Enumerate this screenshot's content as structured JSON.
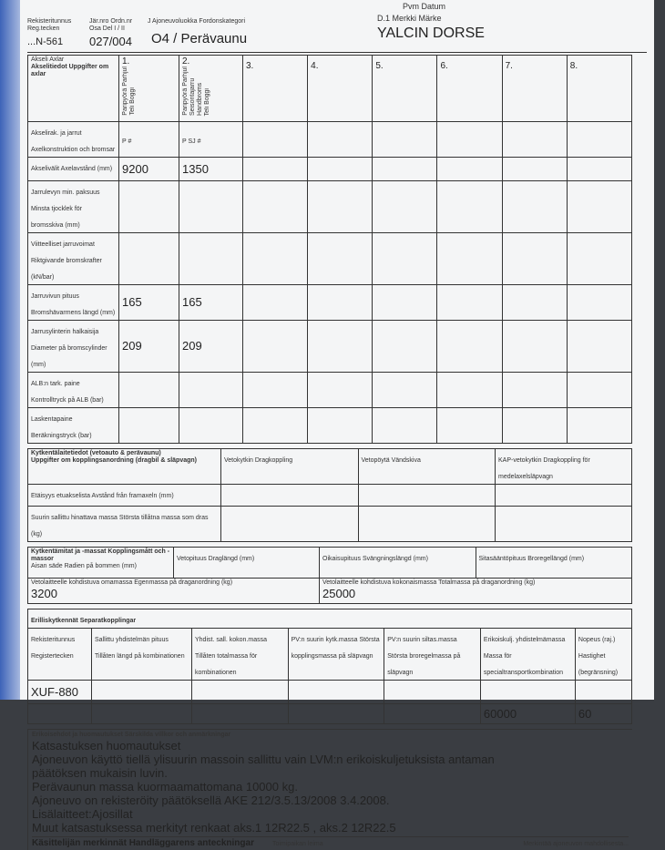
{
  "header": {
    "reg_label": "Rekisteritunnus Reg.tecken",
    "reg_value": "...N-561",
    "serial_label": "Jär.nro Ordn.nr Osa Del I / II",
    "serial_value": "027/004",
    "category_label": "J Ajoneuvoluokka Fordonskategori",
    "category_value": "O4 / Perävaunu",
    "make_label": "D.1 Merkki Märke",
    "make_value": "YALCIN DORSE",
    "date_label": "Pvm Datum"
  },
  "axles": {
    "axle_label": "Akseli Axlar",
    "info_label": "Akselitiedot Uppgifter om axlar",
    "columns": [
      "1.",
      "2.",
      "3.",
      "4.",
      "5.",
      "6.",
      "7.",
      "8."
    ],
    "sub1": [
      "Paripyörä Parhjul",
      "Teli Boggi"
    ],
    "sub2": [
      "Paripyörä Parhjul",
      "Seisontajarru Handbroms",
      "Teli Boggi"
    ],
    "rows": [
      {
        "label": "Akselirak. ja jarrut Axelkonstruktion och bromsar",
        "v1": "P   #",
        "v2": "P   SJ   #"
      },
      {
        "label": "Akselivälit Axelavstånd (mm)",
        "v1": "9200",
        "v2": "1350"
      },
      {
        "label": "Jarrulevyn min. paksuus Minsta tjocklek för bromsskiva (mm)",
        "v1": "",
        "v2": ""
      },
      {
        "label": "Viitteelliset jarruvoimat Riktgivande bromskrafter (kN/bar)",
        "v1": "",
        "v2": ""
      },
      {
        "label": "Jarruvivun pituus Bromshävarmens längd (mm)",
        "v1": "165",
        "v2": "165"
      },
      {
        "label": "Jarrusylinterin halkaisija Diameter på bromscylinder (mm)",
        "v1": "209",
        "v2": "209"
      },
      {
        "label": "ALB:n tark. paine Kontrolltryck på ALB (bar)",
        "v1": "",
        "v2": ""
      },
      {
        "label": "Laskentapaine Beräkningstryck (bar)",
        "v1": "",
        "v2": ""
      }
    ]
  },
  "coupling": {
    "title1": "Kytkentälaitetiedot (vetoauto & perävaunu)",
    "title2": "Uppgifter om kopplingsanordning (dragbil & släpvagn)",
    "cols": [
      "Vetokytkin Dragkoppling",
      "Vetopöytä Vändskiva",
      "KAP-vetokytkin Dragkoppling för medelaxelsläpvagn"
    ],
    "row1": "Etäisyys etuakselista Avstånd från framaxeln (mm)",
    "row2": "Suurin sallittu hinattava massa Största tillåtna massa som dras (kg)"
  },
  "dims": {
    "title": "Kytkentämitat ja -massat Kopplingsmått och -massor",
    "cols": [
      "Aisan säde Radien på bommen (mm)",
      "Vetopituus Draglängd (mm)",
      "Oikaisupituus Svängningslängd (mm)",
      "Sitasääntöpituus Broregellängd (mm)"
    ],
    "own_mass_label": "Vetolaitteelle kohdistuva omamassa Egenmassa på draganordning (kg)",
    "own_mass": "3200",
    "total_mass_label": "Vetolaitteelle kohdistuva kokonaismassa Totalmassa på draganordning (kg)",
    "total_mass": "25000"
  },
  "separate": {
    "title": "Erilliskytkennät Separatkopplingar",
    "cols": [
      "Rekisteritunnus Registertecken",
      "Sallittu yhdistelmän pituus Tillåten längd på kombinationen",
      "Yhdist. sall. kokon.massa Tillåten totalmassa för kombinationen",
      "PV:n suurin kytk.massa Största kopplingsmassa på släpvagn",
      "PV:n suurin siltas.massa Största broregelmassa på släpvagn",
      "Erikoiskulj. yhdistelmämassa Massa för specialtransportkombination",
      "Nopeus (raj.) Hastighet (begränsning)"
    ],
    "row1_reg": "XUF-880",
    "special_mass": "60000",
    "speed": "60"
  },
  "remarks": {
    "title": "Erikoisehdot ja huomautukset Särskilda villkor och anmärkningar",
    "lines": [
      "Katsastuksen huomautukset",
      "Ajoneuvon käyttö tiellä ylisuurin massoin sallittu vain LVM:n erikoiskuljetuksista antaman",
      "päätöksen mukaisin luvin.",
      "Perävaunun massa kuormaamattomana 10000 kg.",
      "Ajoneuvo on rekisteröity päätöksellä AKE 212/3.5.13/2008  3.4.2008.",
      "Lisälaitteet:Ajosillat",
      "Muut katsastuksessa merkityt renkaat aks.1 12R22.5 , aks.2 12R22.5"
    ]
  },
  "footer": {
    "handler": "Käsittelijän merkinnät Handläggarens anteckningar",
    "stamp": "Toimipaikan leima",
    "note": "Merkintää ajoneuvon mahdollisesta..."
  }
}
